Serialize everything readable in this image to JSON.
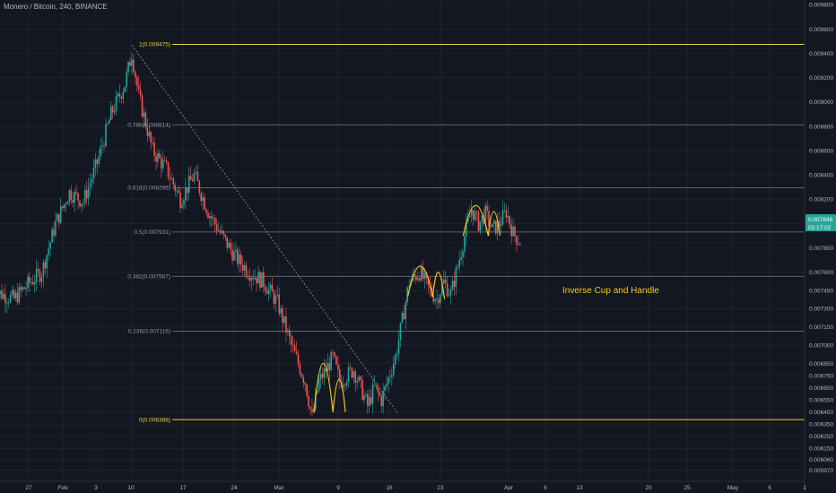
{
  "header": {
    "symbol_title": "Monero / Bitcoin, 240, BINANCE"
  },
  "colors": {
    "background": "#131722",
    "up": "#26a69a",
    "down": "#ef5350",
    "fib_yellow": "#e6d33d",
    "fib_gray": "#787b86",
    "grid": "#1e222d",
    "curve": "#f5c518",
    "trendline": "#9598a1",
    "price_tag": "#26a69a"
  },
  "price_tag": {
    "price": "0.007849",
    "countdown": "02:17:02"
  },
  "annotation": {
    "text": "Inverse Cup and Handle"
  },
  "chart_data": {
    "type": "candlestick",
    "title": "Monero / Bitcoin, 240, BINANCE",
    "interval": "240",
    "exchange": "BINANCE",
    "y_axis": {
      "range": [
        0.00588,
        0.00984
      ],
      "ticks": [
        "0.009800",
        "0.009600",
        "0.009400",
        "0.009200",
        "0.009000",
        "0.008800",
        "0.008600",
        "0.008400",
        "0.008200",
        "0.008000",
        "0.007800",
        "0.007600",
        "0.007450",
        "0.007300",
        "0.007150",
        "0.007000",
        "0.006850",
        "0.006750",
        "0.006650",
        "0.006550",
        "0.006450",
        "0.006350",
        "0.006250",
        "0.006150",
        "0.006060",
        "0.005970"
      ]
    },
    "x_axis": {
      "ticks": [
        "27",
        "Feb",
        "3",
        "10",
        "17",
        "24",
        "Mar",
        "9",
        "16",
        "23",
        "Apr",
        "6",
        "13",
        "20",
        "25",
        "May",
        "6",
        "1"
      ]
    },
    "fibonacci": [
      {
        "ratio": "1",
        "price": "0.009475",
        "label": "1(0.009475)"
      },
      {
        "ratio": "0.786",
        "price": "0.008814",
        "label": "0.786(0.008814)"
      },
      {
        "ratio": "0.618",
        "price": "0.008296",
        "label": "0.618(0.008296)"
      },
      {
        "ratio": "0.5",
        "price": "0.007931",
        "label": "0.5(0.007931)"
      },
      {
        "ratio": "0.382",
        "price": "0.007567",
        "label": "0.382(0.007567)"
      },
      {
        "ratio": "0.236",
        "price": "0.007116",
        "label": "0.236(0.007116)"
      },
      {
        "ratio": "0",
        "price": "0.006388",
        "label": "0(0.006388)"
      }
    ],
    "price_path": [
      {
        "day": -5,
        "close": 0.00745
      },
      {
        "day": -2,
        "close": 0.00738
      },
      {
        "day": 0,
        "close": 0.0075
      },
      {
        "day": 2,
        "close": 0.0076
      },
      {
        "day": 4,
        "close": 0.008
      },
      {
        "day": 6,
        "close": 0.00826
      },
      {
        "day": 8,
        "close": 0.00818
      },
      {
        "day": 10,
        "close": 0.0085
      },
      {
        "day": 12,
        "close": 0.0089
      },
      {
        "day": 14,
        "close": 0.00915
      },
      {
        "day": 15,
        "close": 0.0094
      },
      {
        "day": 16,
        "close": 0.00905
      },
      {
        "day": 18,
        "close": 0.0086
      },
      {
        "day": 20,
        "close": 0.00845
      },
      {
        "day": 22,
        "close": 0.0082
      },
      {
        "day": 24,
        "close": 0.0084
      },
      {
        "day": 26,
        "close": 0.0081
      },
      {
        "day": 28,
        "close": 0.0079
      },
      {
        "day": 30,
        "close": 0.00772
      },
      {
        "day": 32,
        "close": 0.0076
      },
      {
        "day": 34,
        "close": 0.00752
      },
      {
        "day": 36,
        "close": 0.00735
      },
      {
        "day": 38,
        "close": 0.007
      },
      {
        "day": 40,
        "close": 0.0067
      },
      {
        "day": 41,
        "close": 0.0064
      },
      {
        "day": 42,
        "close": 0.0067
      },
      {
        "day": 44,
        "close": 0.0069
      },
      {
        "day": 45,
        "close": 0.0067
      },
      {
        "day": 47,
        "close": 0.0068
      },
      {
        "day": 49,
        "close": 0.0065
      },
      {
        "day": 50,
        "close": 0.00665
      },
      {
        "day": 51,
        "close": 0.00655
      },
      {
        "day": 53,
        "close": 0.0069
      },
      {
        "day": 54,
        "close": 0.0072
      },
      {
        "day": 55,
        "close": 0.00752
      },
      {
        "day": 56.5,
        "close": 0.0076
      },
      {
        "day": 58,
        "close": 0.00745
      },
      {
        "day": 59,
        "close": 0.00738
      },
      {
        "day": 60,
        "close": 0.00752
      },
      {
        "day": 61,
        "close": 0.00742
      },
      {
        "day": 62,
        "close": 0.00765
      },
      {
        "day": 63,
        "close": 0.0079
      },
      {
        "day": 64,
        "close": 0.00812
      },
      {
        "day": 65,
        "close": 0.008
      },
      {
        "day": 66,
        "close": 0.00808
      },
      {
        "day": 67,
        "close": 0.00795
      },
      {
        "day": 68,
        "close": 0.008
      },
      {
        "day": 69,
        "close": 0.0081
      },
      {
        "day": 70,
        "close": 0.00792
      },
      {
        "day": 71,
        "close": 0.00785
      }
    ],
    "curves": [
      [
        {
          "day": 41.3,
          "price": 0.00645
        },
        {
          "day": 42.6,
          "price": 0.00685
        },
        {
          "day": 44,
          "price": 0.00645
        }
      ],
      [
        {
          "day": 44,
          "price": 0.00645
        },
        {
          "day": 44.9,
          "price": 0.00672
        },
        {
          "day": 45.8,
          "price": 0.00645
        }
      ],
      [
        {
          "day": 54.8,
          "price": 0.0074
        },
        {
          "day": 56.6,
          "price": 0.00765
        },
        {
          "day": 58.4,
          "price": 0.0074
        }
      ],
      [
        {
          "day": 58.4,
          "price": 0.0074
        },
        {
          "day": 59.2,
          "price": 0.0076
        },
        {
          "day": 60.1,
          "price": 0.00738
        }
      ],
      [
        {
          "day": 62.8,
          "price": 0.0079
        },
        {
          "day": 64.6,
          "price": 0.00815
        },
        {
          "day": 66.4,
          "price": 0.0079
        }
      ],
      [
        {
          "day": 66.4,
          "price": 0.0079
        },
        {
          "day": 67.2,
          "price": 0.0081
        },
        {
          "day": 68.1,
          "price": 0.0079
        }
      ]
    ],
    "trendline": [
      {
        "day": 15,
        "price": 0.00947
      },
      {
        "day": 53.5,
        "price": 0.00643
      }
    ]
  }
}
